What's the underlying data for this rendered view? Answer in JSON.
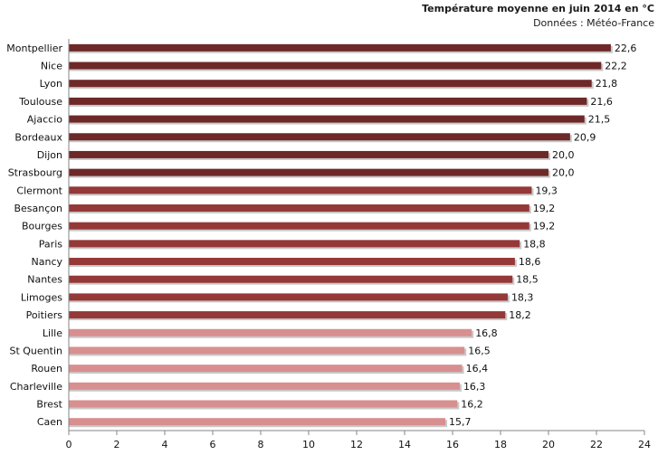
{
  "chart_data": {
    "type": "bar",
    "orientation": "horizontal",
    "title": "Température moyenne en juin 2014 en °C",
    "subtitle": "Données : Météo-France",
    "xlabel": "",
    "ylabel": "",
    "xlim": [
      0,
      24
    ],
    "xticks": [
      "0",
      "2",
      "4",
      "6",
      "8",
      "10",
      "12",
      "14",
      "16",
      "18",
      "20",
      "22",
      "24"
    ],
    "grid": false,
    "legend": "none",
    "categories": [
      "Montpellier",
      "Nice",
      "Lyon",
      "Toulouse",
      "Ajaccio",
      "Bordeaux",
      "Dijon",
      "Strasbourg",
      "Clermont",
      "Besançon",
      "Bourges",
      "Paris",
      "Nancy",
      "Nantes",
      "Limoges",
      "Poitiers",
      "Lille",
      "St Quentin",
      "Rouen",
      "Charleville",
      "Brest",
      "Caen"
    ],
    "values": [
      22.6,
      22.2,
      21.8,
      21.6,
      21.5,
      20.9,
      20.0,
      20.0,
      19.3,
      19.2,
      19.2,
      18.8,
      18.6,
      18.5,
      18.3,
      18.2,
      16.8,
      16.5,
      16.4,
      16.3,
      16.2,
      15.7
    ],
    "value_labels": [
      "22,6",
      "22,2",
      "21,8",
      "21,6",
      "21,5",
      "20,9",
      "20,0",
      "20,0",
      "19,3",
      "19,2",
      "19,2",
      "18,8",
      "18,6",
      "18,5",
      "18,3",
      "18,2",
      "16,8",
      "16,5",
      "16,4",
      "16,3",
      "16,2",
      "15,7"
    ],
    "colors": {
      "group_high": "#6e2828",
      "group_mid": "#953838",
      "group_low": "#d88f8f",
      "axis": "#868686"
    },
    "color_groups": [
      "high",
      "high",
      "high",
      "high",
      "high",
      "high",
      "high",
      "high",
      "mid",
      "mid",
      "mid",
      "mid",
      "mid",
      "mid",
      "mid",
      "mid",
      "low",
      "low",
      "low",
      "low",
      "low",
      "low"
    ]
  }
}
